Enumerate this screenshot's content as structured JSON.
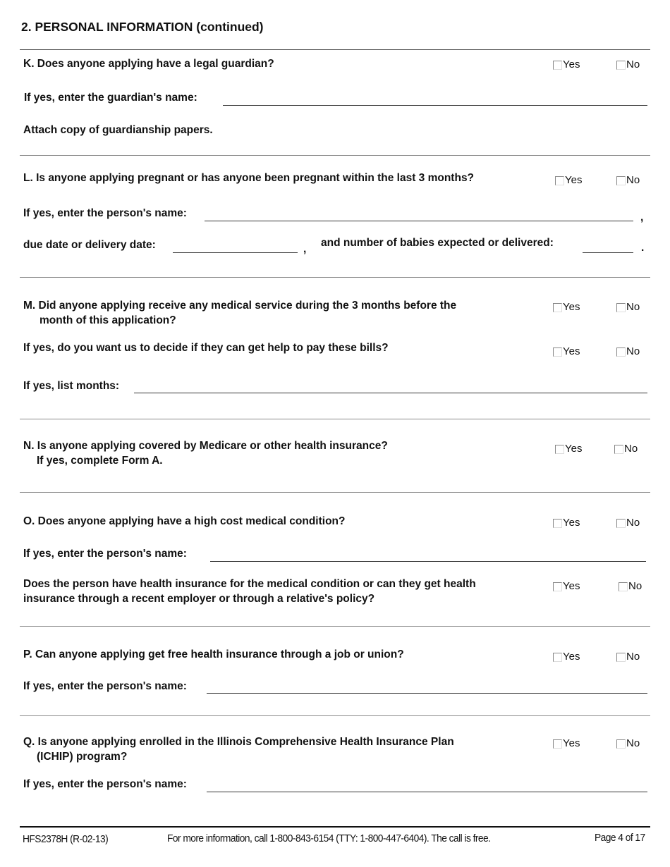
{
  "section_title": "2.  PERSONAL INFORMATION (continued)",
  "options": {
    "yes": "Yes",
    "no": "No"
  },
  "K": {
    "question": "K. Does anyone applying have a legal guardian?",
    "name_label": "If yes, enter the guardian's name:",
    "note": "Attach copy of guardianship papers."
  },
  "L": {
    "question": "L. Is anyone applying pregnant or has anyone been pregnant within the last 3 months?",
    "name_label": "If yes, enter the person's name:",
    "comma": ",",
    "due_label": "due date or delivery date:",
    "babies_label": "and number of babies expected or delivered:",
    "period": "."
  },
  "M": {
    "question_line1": "M. Did anyone applying receive any medical service during the 3 months before the",
    "question_line2": "month of this application?",
    "followup": "If yes, do you want us to decide if they can get help to pay these bills?",
    "months_label": "If yes, list months:"
  },
  "N": {
    "question": "N. Is anyone applying covered by Medicare or other health insurance?",
    "note": "If yes, complete Form A."
  },
  "O": {
    "question": "O. Does anyone applying have a high cost medical condition?",
    "name_label": "If yes, enter the person's name:",
    "followup_line1": "Does the person have health insurance for the medical condition or can they get health",
    "followup_line2": "insurance through a recent employer or through a relative's policy?"
  },
  "P": {
    "question": "P. Can anyone applying get free health insurance through a job or union?",
    "name_label": "If yes, enter the person's name:"
  },
  "Q": {
    "question_line1": "Q. Is anyone applying enrolled in the Illinois Comprehensive Health Insurance Plan",
    "question_line2": "(ICHIP) program?",
    "name_label": "If yes, enter the person's name:"
  },
  "footer": {
    "form_id": "HFS2378H (R-02-13)",
    "info": "For more information, call 1-800-843-6154 (TTY: 1-800-447-6404).  The call is free.",
    "page": "Page 4 of 17"
  }
}
